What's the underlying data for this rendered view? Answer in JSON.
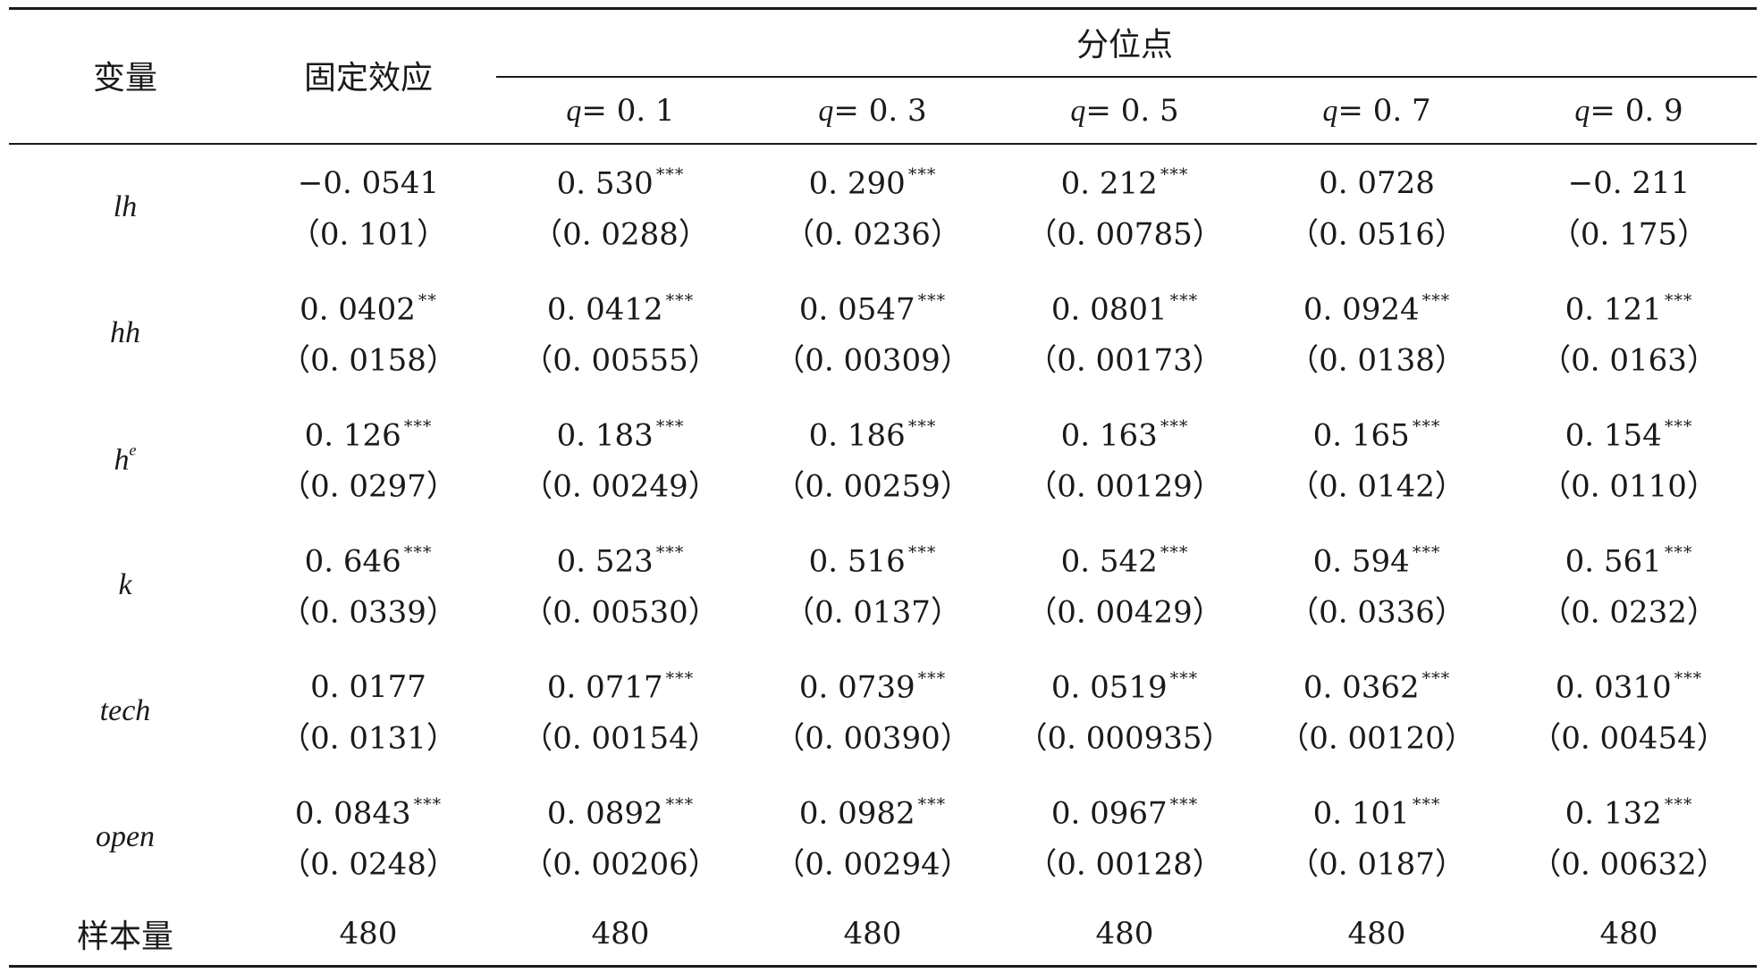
{
  "header": {
    "variable": "变量",
    "fixed_effect": "固定效应",
    "quantile_group": "分位点",
    "quantiles": [
      {
        "q": "q",
        "value": "= 0. 1"
      },
      {
        "q": "q",
        "value": "= 0. 3"
      },
      {
        "q": "q",
        "value": "= 0. 5"
      },
      {
        "q": "q",
        "value": "= 0. 7"
      },
      {
        "q": "q",
        "value": "= 0. 9"
      }
    ]
  },
  "rows": [
    {
      "var": "lh",
      "cells": [
        {
          "coef": "−0. 0541",
          "stars": "",
          "se": "（0. 101）"
        },
        {
          "coef": "0. 530",
          "stars": "***",
          "se": "（0. 0288）"
        },
        {
          "coef": "0. 290",
          "stars": "***",
          "se": "（0. 0236）"
        },
        {
          "coef": "0. 212",
          "stars": "***",
          "se": "（0. 00785）"
        },
        {
          "coef": "0. 0728",
          "stars": "",
          "se": "（0. 0516）"
        },
        {
          "coef": "−0. 211",
          "stars": "",
          "se": "（0. 175）"
        }
      ]
    },
    {
      "var": "hh",
      "cells": [
        {
          "coef": "0. 0402",
          "stars": "**",
          "se": "（0. 0158）"
        },
        {
          "coef": "0. 0412",
          "stars": "***",
          "se": "（0. 00555）"
        },
        {
          "coef": "0. 0547",
          "stars": "***",
          "se": "（0. 00309）"
        },
        {
          "coef": "0. 0801",
          "stars": "***",
          "se": "（0. 00173）"
        },
        {
          "coef": "0. 0924",
          "stars": "***",
          "se": "（0. 0138）"
        },
        {
          "coef": "0. 121",
          "stars": "***",
          "se": "（0. 0163）"
        }
      ]
    },
    {
      "var": "h",
      "var_sup": "e",
      "cells": [
        {
          "coef": "0. 126",
          "stars": "***",
          "se": "（0. 0297）"
        },
        {
          "coef": "0. 183",
          "stars": "***",
          "se": "（0. 00249）"
        },
        {
          "coef": "0. 186",
          "stars": "***",
          "se": "（0. 00259）"
        },
        {
          "coef": "0. 163",
          "stars": "***",
          "se": "（0. 00129）"
        },
        {
          "coef": "0. 165",
          "stars": "***",
          "se": "（0. 0142）"
        },
        {
          "coef": "0. 154",
          "stars": "***",
          "se": "（0. 0110）"
        }
      ]
    },
    {
      "var": "k",
      "cells": [
        {
          "coef": "0. 646",
          "stars": "***",
          "se": "（0. 0339）"
        },
        {
          "coef": "0. 523",
          "stars": "***",
          "se": "（0. 00530）"
        },
        {
          "coef": "0. 516",
          "stars": "***",
          "se": "（0. 0137）"
        },
        {
          "coef": "0. 542",
          "stars": "***",
          "se": "（0. 00429）"
        },
        {
          "coef": "0. 594",
          "stars": "***",
          "se": "（0. 0336）"
        },
        {
          "coef": "0. 561",
          "stars": "***",
          "se": "（0. 0232）"
        }
      ]
    },
    {
      "var": "tech",
      "cells": [
        {
          "coef": "0. 0177",
          "stars": "",
          "se": "（0. 0131）"
        },
        {
          "coef": "0. 0717",
          "stars": "***",
          "se": "（0. 00154）"
        },
        {
          "coef": "0. 0739",
          "stars": "***",
          "se": "（0. 00390）"
        },
        {
          "coef": "0. 0519",
          "stars": "***",
          "se": "（0. 000935）"
        },
        {
          "coef": "0. 0362",
          "stars": "***",
          "se": "（0. 00120）"
        },
        {
          "coef": "0. 0310",
          "stars": "***",
          "se": "（0. 00454）"
        }
      ]
    },
    {
      "var": "open",
      "cells": [
        {
          "coef": "0. 0843",
          "stars": "***",
          "se": "（0. 0248）"
        },
        {
          "coef": "0. 0892",
          "stars": "***",
          "se": "（0. 00206）"
        },
        {
          "coef": "0. 0982",
          "stars": "***",
          "se": "（0. 00294）"
        },
        {
          "coef": "0. 0967",
          "stars": "***",
          "se": "（0. 00128）"
        },
        {
          "coef": "0. 101",
          "stars": "***",
          "se": "（0. 0187）"
        },
        {
          "coef": "0. 132",
          "stars": "***",
          "se": "（0. 00632）"
        }
      ]
    }
  ],
  "sample": {
    "label": "样本量",
    "values": [
      "480",
      "480",
      "480",
      "480",
      "480",
      "480"
    ]
  }
}
